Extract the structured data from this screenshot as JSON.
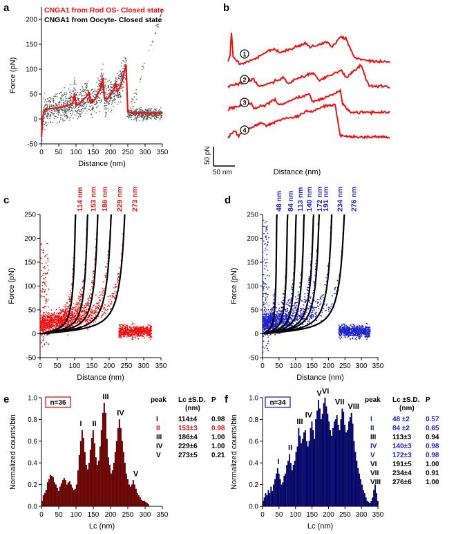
{
  "colors": {
    "red": "#ee1111",
    "black": "#000000",
    "blue": "#2222cc",
    "bar_red": "#8b0000",
    "bar_blue": "#00008b",
    "scatter_gray": "#555555"
  },
  "chart_data": [
    {
      "panel": "a",
      "type": "line",
      "legend": [
        "CNGA1 from Rod OS- Closed state",
        "CNGA1 from Oocyte- Closed state"
      ],
      "xlabel": "Distance (nm)",
      "ylabel": "Force (pN)",
      "xlim": [
        0,
        350
      ],
      "ylim": [
        -50,
        225
      ],
      "xticks": [
        0,
        50,
        100,
        150,
        200,
        250,
        300,
        350
      ],
      "yticks": [
        -50,
        0,
        50,
        100,
        150,
        200
      ],
      "series": [
        {
          "color": "red",
          "points": [
            [
              0,
              -35
            ],
            [
              5,
              10
            ],
            [
              10,
              18
            ],
            [
              20,
              20
            ],
            [
              30,
              21
            ],
            [
              40,
              22
            ],
            [
              50,
              23
            ],
            [
              60,
              24
            ],
            [
              70,
              26
            ],
            [
              80,
              28
            ],
            [
              90,
              32
            ],
            [
              96,
              50
            ],
            [
              100,
              28
            ],
            [
              110,
              30
            ],
            [
              120,
              38
            ],
            [
              130,
              45
            ],
            [
              138,
              53
            ],
            [
              142,
              32
            ],
            [
              150,
              35
            ],
            [
              160,
              45
            ],
            [
              170,
              60
            ],
            [
              178,
              82
            ],
            [
              182,
              42
            ],
            [
              190,
              40
            ],
            [
              200,
              48
            ],
            [
              210,
              58
            ],
            [
              215,
              72
            ],
            [
              220,
              55
            ],
            [
              228,
              65
            ],
            [
              235,
              80
            ],
            [
              240,
              95
            ],
            [
              245,
              108
            ],
            [
              250,
              15
            ],
            [
              260,
              12
            ],
            [
              280,
              12
            ],
            [
              300,
              12
            ],
            [
              320,
              12
            ],
            [
              350,
              12
            ]
          ]
        }
      ],
      "background_scatter": {
        "color": "gray",
        "x_range": [
          0,
          350
        ]
      }
    },
    {
      "panel": "b",
      "type": "line",
      "xlabel": "Distance (nm)",
      "scalebar_y": "50 pN",
      "scalebar_x": "50 nm",
      "traces": [
        {
          "label": "1",
          "points": [
            [
              0,
              0
            ],
            [
              5,
              8
            ],
            [
              8,
              48
            ],
            [
              12,
              5
            ],
            [
              30,
              -5
            ],
            [
              60,
              2
            ],
            [
              90,
              14
            ],
            [
              110,
              20
            ],
            [
              120,
              12
            ],
            [
              150,
              20
            ],
            [
              180,
              28
            ],
            [
              192,
              22
            ],
            [
              230,
              30
            ],
            [
              244,
              22
            ],
            [
              260,
              38
            ],
            [
              275,
              36
            ],
            [
              295,
              5
            ],
            [
              330,
              0
            ],
            [
              380,
              -2
            ]
          ]
        },
        {
          "label": "2",
          "points": [
            [
              0,
              0
            ],
            [
              30,
              5
            ],
            [
              60,
              12
            ],
            [
              72,
              0
            ],
            [
              100,
              6
            ],
            [
              130,
              14
            ],
            [
              140,
              5
            ],
            [
              170,
              15
            ],
            [
              200,
              22
            ],
            [
              212,
              10
            ],
            [
              240,
              18
            ],
            [
              265,
              26
            ],
            [
              275,
              14
            ],
            [
              300,
              28
            ],
            [
              310,
              34
            ],
            [
              330,
              0
            ],
            [
              380,
              0
            ]
          ]
        },
        {
          "label": "3",
          "points": [
            [
              0,
              0
            ],
            [
              30,
              6
            ],
            [
              55,
              10
            ],
            [
              60,
              0
            ],
            [
              90,
              8
            ],
            [
              110,
              16
            ],
            [
              118,
              6
            ],
            [
              160,
              18
            ],
            [
              190,
              24
            ],
            [
              198,
              12
            ],
            [
              240,
              22
            ],
            [
              262,
              30
            ],
            [
              268,
              8
            ],
            [
              285,
              -5
            ],
            [
              380,
              -5
            ]
          ]
        },
        {
          "label": "4",
          "points": [
            [
              0,
              0
            ],
            [
              15,
              10
            ],
            [
              25,
              3
            ],
            [
              50,
              14
            ],
            [
              80,
              22
            ],
            [
              90,
              18
            ],
            [
              130,
              30
            ],
            [
              160,
              32
            ],
            [
              180,
              40
            ],
            [
              200,
              42
            ],
            [
              220,
              48
            ],
            [
              250,
              52
            ],
            [
              262,
              2
            ],
            [
              290,
              0
            ],
            [
              380,
              0
            ]
          ]
        }
      ]
    },
    {
      "panel": "c",
      "type": "scatter",
      "xlabel": "Distance (nm)",
      "ylabel": "Force (pN)",
      "xlim": [
        0,
        350
      ],
      "ylim": [
        -50,
        250
      ],
      "xticks": [
        0,
        50,
        100,
        150,
        200,
        250,
        300,
        350
      ],
      "yticks": [
        -50,
        0,
        50,
        100,
        150,
        200,
        250
      ],
      "wlc_fits_nm": [
        114,
        153,
        186,
        229,
        273
      ],
      "wlc_labels": [
        "114 nm",
        "153 nm",
        "186 nm",
        "229 nm",
        "273 nm"
      ],
      "scatter_color": "red"
    },
    {
      "panel": "d",
      "type": "scatter",
      "xlabel": "Distance (nm)",
      "ylabel": "Force (pN)",
      "xlim": [
        0,
        350
      ],
      "ylim": [
        -50,
        250
      ],
      "xticks": [
        0,
        50,
        100,
        150,
        200,
        250,
        300,
        350
      ],
      "yticks": [
        -50,
        0,
        50,
        100,
        150,
        200,
        250
      ],
      "wlc_fits_nm": [
        48,
        84,
        113,
        140,
        172,
        191,
        234,
        276
      ],
      "wlc_labels": [
        "48 nm",
        "84 nm",
        "113 nm",
        "140 nm",
        "172 nm",
        "191 nm",
        "234 nm",
        "276 nm"
      ],
      "scatter_color": "blue"
    },
    {
      "panel": "e",
      "type": "bar",
      "n_label": "n=36",
      "xlabel": "Lc (nm)",
      "ylabel": "Normalized counts/bin",
      "xlim": [
        0,
        350
      ],
      "ylim": [
        0,
        1.0
      ],
      "xticks": [
        0,
        50,
        100,
        150,
        200,
        250,
        300,
        350
      ],
      "yticks": [
        0.0,
        0.2,
        0.4,
        0.6,
        0.8,
        1.0
      ],
      "peaks": [
        {
          "label": "I",
          "x": 114
        },
        {
          "label": "II",
          "x": 153
        },
        {
          "label": "III",
          "x": 186
        },
        {
          "label": "IV",
          "x": 229
        },
        {
          "label": "V",
          "x": 273
        }
      ],
      "bin_width": 4,
      "values": [
        0.05,
        0.1,
        0.12,
        0.15,
        0.22,
        0.25,
        0.29,
        0.28,
        0.27,
        0.22,
        0.2,
        0.17,
        0.14,
        0.18,
        0.21,
        0.24,
        0.26,
        0.24,
        0.2,
        0.22,
        0.23,
        0.2,
        0.17,
        0.15,
        0.16,
        0.2,
        0.33,
        0.47,
        0.6,
        0.7,
        0.63,
        0.5,
        0.38,
        0.34,
        0.4,
        0.52,
        0.63,
        0.7,
        0.58,
        0.45,
        0.38,
        0.42,
        0.55,
        0.7,
        0.86,
        0.95,
        0.86,
        0.62,
        0.45,
        0.38,
        0.3,
        0.33,
        0.4,
        0.5,
        0.6,
        0.72,
        0.8,
        0.72,
        0.6,
        0.5,
        0.4,
        0.3,
        0.25,
        0.2,
        0.18,
        0.2,
        0.24,
        0.2,
        0.16,
        0.12,
        0.1,
        0.08,
        0.06,
        0.05,
        0.05,
        0.04,
        0.03,
        0.02
      ]
    },
    {
      "panel": "f",
      "type": "bar",
      "n_label": "n=34",
      "xlabel": "Lc (nm)",
      "ylabel": "Normalized counts/bin",
      "xlim": [
        0,
        350
      ],
      "ylim": [
        0,
        1.0
      ],
      "xticks": [
        0,
        50,
        100,
        150,
        200,
        250,
        300,
        350
      ],
      "yticks": [
        0.0,
        0.2,
        0.4,
        0.6,
        0.8,
        1.0
      ],
      "peaks": [
        {
          "label": "I",
          "x": 48
        },
        {
          "label": "II",
          "x": 84
        },
        {
          "label": "III",
          "x": 113
        },
        {
          "label": "IV",
          "x": 140
        },
        {
          "label": "V",
          "x": 172
        },
        {
          "label": "VI",
          "x": 191
        },
        {
          "label": "VII",
          "x": 234
        },
        {
          "label": "VIII",
          "x": 276
        }
      ],
      "bin_width": 4,
      "values": [
        0.05,
        0.08,
        0.12,
        0.1,
        0.15,
        0.12,
        0.18,
        0.14,
        0.2,
        0.25,
        0.3,
        0.35,
        0.3,
        0.25,
        0.2,
        0.22,
        0.28,
        0.3,
        0.38,
        0.42,
        0.48,
        0.4,
        0.33,
        0.38,
        0.42,
        0.5,
        0.55,
        0.72,
        0.65,
        0.58,
        0.62,
        0.68,
        0.7,
        0.6,
        0.55,
        0.6,
        0.72,
        0.78,
        0.7,
        0.62,
        0.8,
        0.88,
        0.98,
        0.9,
        0.8,
        0.85,
        0.95,
        1.0,
        0.92,
        0.85,
        0.78,
        0.7,
        0.65,
        0.72,
        0.78,
        0.8,
        0.84,
        0.75,
        0.7,
        0.8,
        0.9,
        0.87,
        0.75,
        0.68,
        0.7,
        0.78,
        0.82,
        0.86,
        0.76,
        0.6,
        0.5,
        0.42,
        0.35,
        0.3,
        0.25,
        0.2,
        0.15,
        0.12,
        0.08,
        0.05,
        0.04,
        0.03,
        0.05,
        0.08,
        0.15,
        0.2,
        0.12,
        0.05
      ]
    }
  ],
  "tables": {
    "e": {
      "headers": [
        "peak",
        "Lc ±S.D.",
        "P"
      ],
      "sub": "(nm)",
      "rows": [
        {
          "peak": "I",
          "lc": "114±4",
          "p": "0.98",
          "color": "black"
        },
        {
          "peak": "II",
          "lc": "153±3",
          "p": "0.98",
          "color": "red"
        },
        {
          "peak": "III",
          "lc": "186±4",
          "p": "1.00",
          "color": "black"
        },
        {
          "peak": "IV",
          "lc": "229±6",
          "p": "1.00",
          "color": "black"
        },
        {
          "peak": "V",
          "lc": "273±5",
          "p": "0.21",
          "color": "black"
        }
      ]
    },
    "f": {
      "headers": [
        "peak",
        "Lc ±S.D.",
        "P"
      ],
      "sub": "(nm)",
      "rows": [
        {
          "peak": "I",
          "lc": "48 ±2",
          "p": "0.57",
          "color": "blue"
        },
        {
          "peak": "II",
          "lc": "84 ±2",
          "p": "0.65",
          "color": "blue"
        },
        {
          "peak": "III",
          "lc": "113±3",
          "p": "0.94",
          "color": "black"
        },
        {
          "peak": "IV",
          "lc": "140±3",
          "p": "0.98",
          "color": "blue"
        },
        {
          "peak": "V",
          "lc": "172±3",
          "p": "0.98",
          "color": "blue"
        },
        {
          "peak": "VI",
          "lc": "191±5",
          "p": "1.00",
          "color": "black"
        },
        {
          "peak": "VII",
          "lc": "234±4",
          "p": "0.91",
          "color": "black"
        },
        {
          "peak": "VIII",
          "lc": "276±6",
          "p": "1.00",
          "color": "black"
        }
      ]
    }
  }
}
